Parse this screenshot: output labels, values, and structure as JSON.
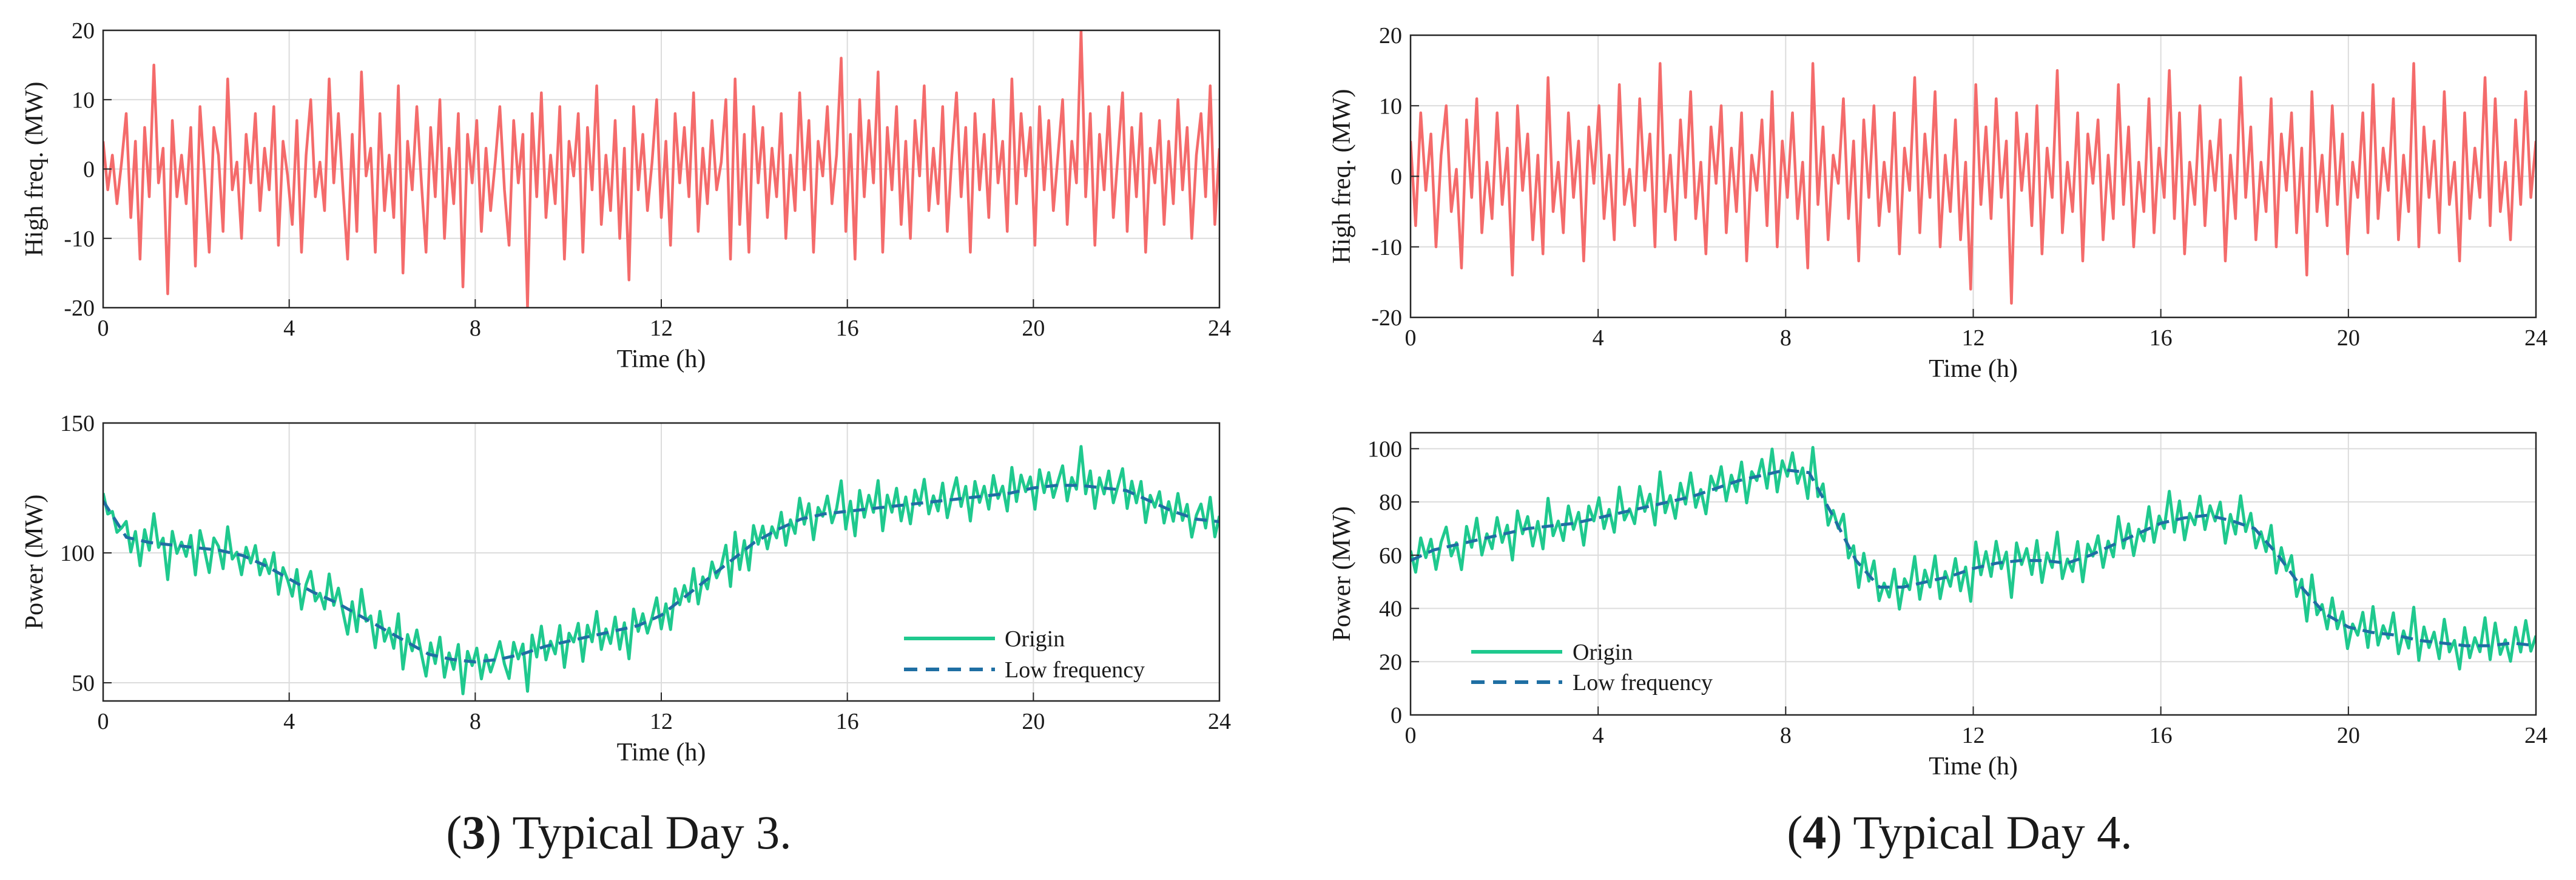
{
  "colors": {
    "high_freq": "#f46b6b",
    "origin": "#1fc98e",
    "low_freq": "#1f6fa3"
  },
  "chart_data": [
    {
      "id": "day3-high",
      "type": "line",
      "title": "",
      "xlabel": "Time (h)",
      "ylabel": "High freq. (MW)",
      "xlim": [
        0,
        24
      ],
      "ylim": [
        -20,
        20
      ],
      "xticks": [
        0,
        4,
        8,
        12,
        16,
        20,
        24
      ],
      "yticks": [
        -20,
        -10,
        0,
        10,
        20
      ],
      "grid": true,
      "series": [
        {
          "name": "High frequency",
          "color_key": "high_freq",
          "values": [
            4,
            -3,
            2,
            -5,
            1,
            8,
            -7,
            4,
            -13,
            6,
            -4,
            15,
            -2,
            3,
            -18,
            7,
            -4,
            2,
            -5,
            6,
            -14,
            9,
            -1,
            -12,
            6,
            2,
            -9,
            13,
            -3,
            1,
            -10,
            5,
            -2,
            8,
            -6,
            3,
            -3,
            9,
            -11,
            4,
            -1,
            -8,
            7,
            -12,
            2,
            10,
            -4,
            1,
            -6,
            13,
            -2,
            8,
            -3,
            -13,
            5,
            -9,
            14,
            -1,
            3,
            -12,
            8,
            -6,
            2,
            -7,
            12,
            -15,
            4,
            -3,
            9,
            -2,
            -12,
            6,
            -4,
            10,
            -10,
            3,
            -5,
            8,
            -17,
            5,
            -2,
            7,
            -9,
            3,
            -6,
            1,
            9,
            -3,
            -11,
            7,
            -2,
            5,
            -20,
            8,
            -4,
            11,
            -7,
            2,
            -5,
            9,
            -13,
            4,
            -1,
            8,
            -12,
            6,
            -3,
            12,
            -8,
            2,
            -6,
            7,
            -10,
            3,
            -16,
            9,
            -3,
            5,
            -6,
            1,
            10,
            -7,
            4,
            -11,
            8,
            -2,
            6,
            -4,
            11,
            -9,
            3,
            -5,
            7,
            -3,
            1,
            10,
            -13,
            13,
            -8,
            5,
            -12,
            9,
            -2,
            6,
            -7,
            3,
            -4,
            8,
            -10,
            2,
            -6,
            11,
            -3,
            7,
            -12,
            4,
            -1,
            9,
            -5,
            2,
            16,
            -9,
            5,
            -13,
            10,
            -4,
            7,
            -2,
            14,
            -12,
            6,
            -3,
            9,
            -8,
            4,
            -10,
            7,
            -1,
            12,
            -6,
            3,
            -5,
            9,
            -9,
            2,
            11,
            -4,
            6,
            -12,
            8,
            -3,
            5,
            -7,
            10,
            -2,
            4,
            -9,
            13,
            -5,
            8,
            -1,
            6,
            -11,
            9,
            -3,
            7,
            -6,
            2,
            10,
            -8,
            4,
            -2,
            20,
            -4,
            8,
            -11,
            5,
            -3,
            9,
            -7,
            2,
            11,
            -9,
            6,
            -4,
            8,
            -12,
            3,
            -2,
            7,
            -8,
            4,
            -5,
            10,
            -3,
            6,
            -10,
            2,
            8,
            -4,
            12,
            -8,
            3
          ]
        }
      ]
    },
    {
      "id": "day3-power",
      "type": "line",
      "title": "",
      "xlabel": "Time (h)",
      "ylabel": "Power (MW)",
      "xlim": [
        0,
        24
      ],
      "ylim": [
        43,
        150
      ],
      "xticks": [
        0,
        4,
        8,
        12,
        16,
        20,
        24
      ],
      "yticks": [
        50,
        100,
        150
      ],
      "grid": true,
      "legend_position": "bottom-right",
      "origin_noise": [
        4,
        -3,
        2,
        -5,
        1,
        8,
        -7,
        4,
        -13,
        6,
        -4,
        15,
        -2,
        3,
        -18,
        7,
        -4,
        2,
        -5,
        6,
        -14,
        9,
        -1,
        -12,
        6,
        2,
        -9,
        13,
        -3,
        1,
        -10,
        5,
        -2,
        8,
        -6,
        3,
        -3,
        9,
        -11,
        4,
        -1,
        -8,
        7,
        -12,
        2,
        10,
        -4,
        1,
        -6,
        13,
        -2,
        8,
        -3,
        -13,
        5,
        -9,
        14,
        -1,
        3,
        -12,
        8,
        -6,
        2,
        -7,
        12,
        -15,
        4,
        -3,
        9,
        -2,
        -12,
        6,
        -4,
        10,
        -10,
        3,
        -5,
        8,
        -17,
        5,
        -2,
        7,
        -9,
        3,
        -6,
        1,
        9,
        -3,
        -11,
        7,
        -2,
        5,
        -20,
        8,
        -4,
        11,
        -7,
        2,
        -5,
        9,
        -13,
        4,
        -1,
        8,
        -12,
        6,
        -3,
        12,
        -8,
        2,
        -6,
        7,
        -10,
        3,
        -16,
        9,
        -3,
        5,
        -6,
        1,
        10,
        -7,
        4,
        -11,
        8,
        -2,
        6,
        -4,
        11,
        -9,
        3,
        -5,
        7,
        -3,
        1,
        10,
        -13,
        13,
        -8,
        5,
        -12,
        9,
        -2,
        6,
        -7,
        3,
        -4,
        8,
        -10,
        2,
        -6,
        11,
        -3,
        7,
        -12,
        4,
        -1,
        9,
        -5,
        2,
        16,
        -9,
        5,
        -13,
        10,
        -4,
        7,
        -2,
        14,
        -12,
        6,
        -3,
        9,
        -8,
        4,
        -10,
        7,
        -1,
        12,
        -6,
        3,
        -5,
        9,
        -9,
        2,
        11,
        -4,
        6,
        -12,
        8,
        -3,
        5,
        -7,
        10,
        -2,
        4,
        -9,
        13,
        -5,
        8,
        -1,
        6,
        -11,
        9,
        -3,
        7,
        -6,
        2,
        10,
        -8,
        4,
        -2,
        20,
        -4,
        8,
        -11,
        5,
        -3,
        9,
        -7,
        2,
        11,
        -9,
        6,
        -4,
        8,
        -12,
        3,
        -2,
        7,
        -8,
        4,
        -5,
        10,
        -3,
        6,
        -10,
        2,
        8,
        -4,
        12,
        -8,
        3
      ],
      "series": [
        {
          "name": "Origin",
          "color_key": "origin",
          "style": "solid"
        },
        {
          "name": "Low frequency",
          "color_key": "low_freq",
          "style": "dashed",
          "x": [
            0,
            0.5,
            1,
            1.5,
            2,
            2.5,
            3,
            3.5,
            4,
            4.5,
            5,
            5.5,
            6,
            6.5,
            7,
            7.5,
            8,
            8.5,
            9,
            9.5,
            10,
            10.5,
            11,
            11.5,
            12,
            12.5,
            13,
            13.5,
            14,
            14.5,
            15,
            15.5,
            16,
            16.5,
            17,
            17.5,
            18,
            18.5,
            19,
            19.5,
            20,
            20.5,
            21,
            21.5,
            22,
            22.5,
            23,
            23.5,
            24
          ],
          "values": [
            120,
            106,
            104,
            103,
            102,
            101,
            99,
            95,
            90,
            85,
            81,
            76,
            71,
            66,
            61,
            59,
            58,
            59,
            61,
            64,
            66,
            68,
            70,
            72,
            76,
            83,
            90,
            97,
            104,
            109,
            113,
            115,
            116,
            117,
            118,
            119,
            120,
            121,
            122,
            123,
            125,
            126,
            126,
            125,
            124,
            120,
            116,
            113,
            112
          ]
        }
      ]
    },
    {
      "id": "day4-high",
      "type": "line",
      "title": "",
      "xlabel": "Time (h)",
      "ylabel": "High freq. (MW)",
      "xlim": [
        0,
        24
      ],
      "ylim": [
        -20,
        20
      ],
      "xticks": [
        0,
        4,
        8,
        12,
        16,
        20,
        24
      ],
      "yticks": [
        -20,
        -10,
        0,
        10,
        20
      ],
      "grid": true,
      "series": [
        {
          "name": "High frequency",
          "color_key": "high_freq",
          "values": [
            5,
            -7,
            9,
            -2,
            6,
            -10,
            3,
            10,
            -5,
            1,
            -13,
            8,
            -3,
            11,
            -8,
            2,
            -6,
            9,
            -4,
            4,
            -14,
            10,
            -2,
            6,
            -9,
            3,
            -11,
            14,
            -5,
            2,
            -8,
            9,
            -3,
            5,
            -12,
            7,
            -1,
            10,
            -6,
            3,
            -9,
            13,
            -4,
            1,
            -7,
            11,
            -2,
            6,
            -10,
            16,
            -5,
            3,
            -9,
            8,
            -3,
            12,
            -6,
            2,
            -11,
            7,
            -1,
            10,
            -8,
            4,
            -5,
            9,
            -12,
            3,
            -2,
            8,
            -7,
            12,
            -10,
            5,
            -3,
            9,
            -6,
            2,
            -13,
            16,
            -4,
            7,
            -9,
            3,
            -1,
            11,
            -6,
            5,
            -12,
            8,
            -3,
            10,
            -7,
            2,
            -5,
            9,
            -11,
            4,
            -2,
            14,
            -8,
            6,
            -3,
            12,
            -10,
            3,
            -5,
            8,
            -9,
            2,
            -16,
            13,
            -4,
            7,
            -6,
            11,
            -3,
            5,
            -18,
            9,
            -2,
            6,
            -7,
            10,
            -11,
            4,
            -3,
            15,
            -8,
            2,
            -5,
            9,
            -12,
            6,
            -1,
            8,
            -9,
            3,
            -6,
            13,
            -4,
            7,
            -10,
            2,
            -5,
            11,
            -8,
            4,
            -3,
            15,
            -6,
            9,
            -11,
            2,
            -4,
            10,
            -7,
            5,
            -2,
            8,
            -12,
            3,
            -6,
            14,
            -3,
            7,
            -9,
            2,
            -5,
            11,
            -10,
            6,
            -2,
            9,
            -8,
            4,
            -14,
            12,
            -5,
            3,
            -7,
            10,
            -4,
            6,
            -11,
            2,
            -3,
            9,
            -8,
            13,
            -6,
            4,
            -2,
            11,
            -9,
            3,
            -5,
            16,
            -10,
            7,
            -3,
            5,
            -8,
            12,
            -4,
            2,
            -12,
            9,
            -6,
            4,
            -3,
            14,
            -7,
            11,
            -5,
            2,
            -9,
            8,
            -4,
            12,
            -3,
            5
          ]
        }
      ]
    },
    {
      "id": "day4-power",
      "type": "line",
      "title": "",
      "xlabel": "Time (h)",
      "ylabel": "Power (MW)",
      "xlim": [
        0,
        24
      ],
      "ylim": [
        0,
        106
      ],
      "xticks": [
        0,
        4,
        8,
        12,
        16,
        20,
        24
      ],
      "yticks": [
        0,
        20,
        40,
        60,
        80,
        100
      ],
      "grid": true,
      "legend_position": "bottom-left",
      "origin_noise": [
        5,
        -7,
        9,
        -2,
        6,
        -10,
        3,
        10,
        -5,
        1,
        -13,
        8,
        -3,
        11,
        -8,
        2,
        -6,
        9,
        -4,
        4,
        -14,
        10,
        -2,
        6,
        -9,
        3,
        -11,
        14,
        -5,
        2,
        -8,
        9,
        -3,
        5,
        -12,
        7,
        -1,
        10,
        -6,
        3,
        -9,
        13,
        -4,
        1,
        -7,
        11,
        -2,
        6,
        -10,
        16,
        -5,
        3,
        -9,
        8,
        -3,
        12,
        -6,
        2,
        -11,
        7,
        -1,
        10,
        -8,
        4,
        -5,
        9,
        -12,
        3,
        -2,
        8,
        -7,
        12,
        -10,
        5,
        -3,
        9,
        -6,
        2,
        -13,
        16,
        -4,
        7,
        -9,
        3,
        -1,
        11,
        -6,
        5,
        -12,
        8,
        -3,
        10,
        -7,
        2,
        -5,
        9,
        -11,
        4,
        -2,
        14,
        -8,
        6,
        -3,
        12,
        -10,
        3,
        -5,
        8,
        -9,
        2,
        -16,
        13,
        -4,
        7,
        -6,
        11,
        -3,
        5,
        -18,
        9,
        -2,
        6,
        -7,
        10,
        -11,
        4,
        -3,
        15,
        -8,
        2,
        -5,
        9,
        -12,
        6,
        -1,
        8,
        -9,
        3,
        -6,
        13,
        -4,
        7,
        -10,
        2,
        -5,
        11,
        -8,
        4,
        -3,
        15,
        -6,
        9,
        -11,
        2,
        -4,
        10,
        -7,
        5,
        -2,
        8,
        -12,
        3,
        -6,
        14,
        -3,
        7,
        -9,
        2,
        -5,
        11,
        -10,
        6,
        -2,
        9,
        -8,
        4,
        -14,
        12,
        -5,
        3,
        -7,
        10,
        -4,
        6,
        -11,
        2,
        -3,
        9,
        -8,
        13,
        -6,
        4,
        -2,
        11,
        -9,
        3,
        -5,
        16,
        -10,
        7,
        -3,
        5,
        -8,
        12,
        -4,
        2,
        -12,
        9,
        -6,
        4,
        -3,
        14,
        -7,
        11,
        -5,
        2,
        -9,
        8,
        -4,
        12,
        -3,
        5
      ],
      "series": [
        {
          "name": "Origin",
          "color_key": "origin",
          "style": "solid"
        },
        {
          "name": "Low frequency",
          "color_key": "low_freq",
          "style": "dashed",
          "x": [
            0,
            0.5,
            1,
            1.5,
            2,
            2.5,
            3,
            3.5,
            4,
            4.5,
            5,
            5.5,
            6,
            6.5,
            7,
            7.5,
            8,
            8.5,
            9,
            9.5,
            10,
            10.5,
            11,
            11.5,
            12,
            12.5,
            13,
            13.5,
            14,
            14.5,
            15,
            15.5,
            16,
            16.5,
            17,
            17.5,
            18,
            18.5,
            19,
            19.5,
            20,
            20.5,
            21,
            21.5,
            22,
            22.5,
            23,
            23.5,
            24
          ],
          "values": [
            58,
            62,
            64,
            66,
            68,
            70,
            71,
            72,
            74,
            76,
            78,
            80,
            82,
            85,
            88,
            90,
            92,
            91,
            75,
            58,
            48,
            48,
            50,
            52,
            55,
            57,
            58,
            58,
            57,
            60,
            64,
            68,
            72,
            74,
            75,
            73,
            70,
            60,
            48,
            38,
            33,
            31,
            30,
            28,
            27,
            26,
            26,
            27,
            26
          ]
        }
      ]
    }
  ],
  "legend": {
    "origin_label": "Origin",
    "low_label": "Low frequency"
  },
  "captions": {
    "day3_num": "3",
    "day3_text": " Typical Day 3.",
    "day4_num": "4",
    "day4_text": " Typical Day 4."
  }
}
